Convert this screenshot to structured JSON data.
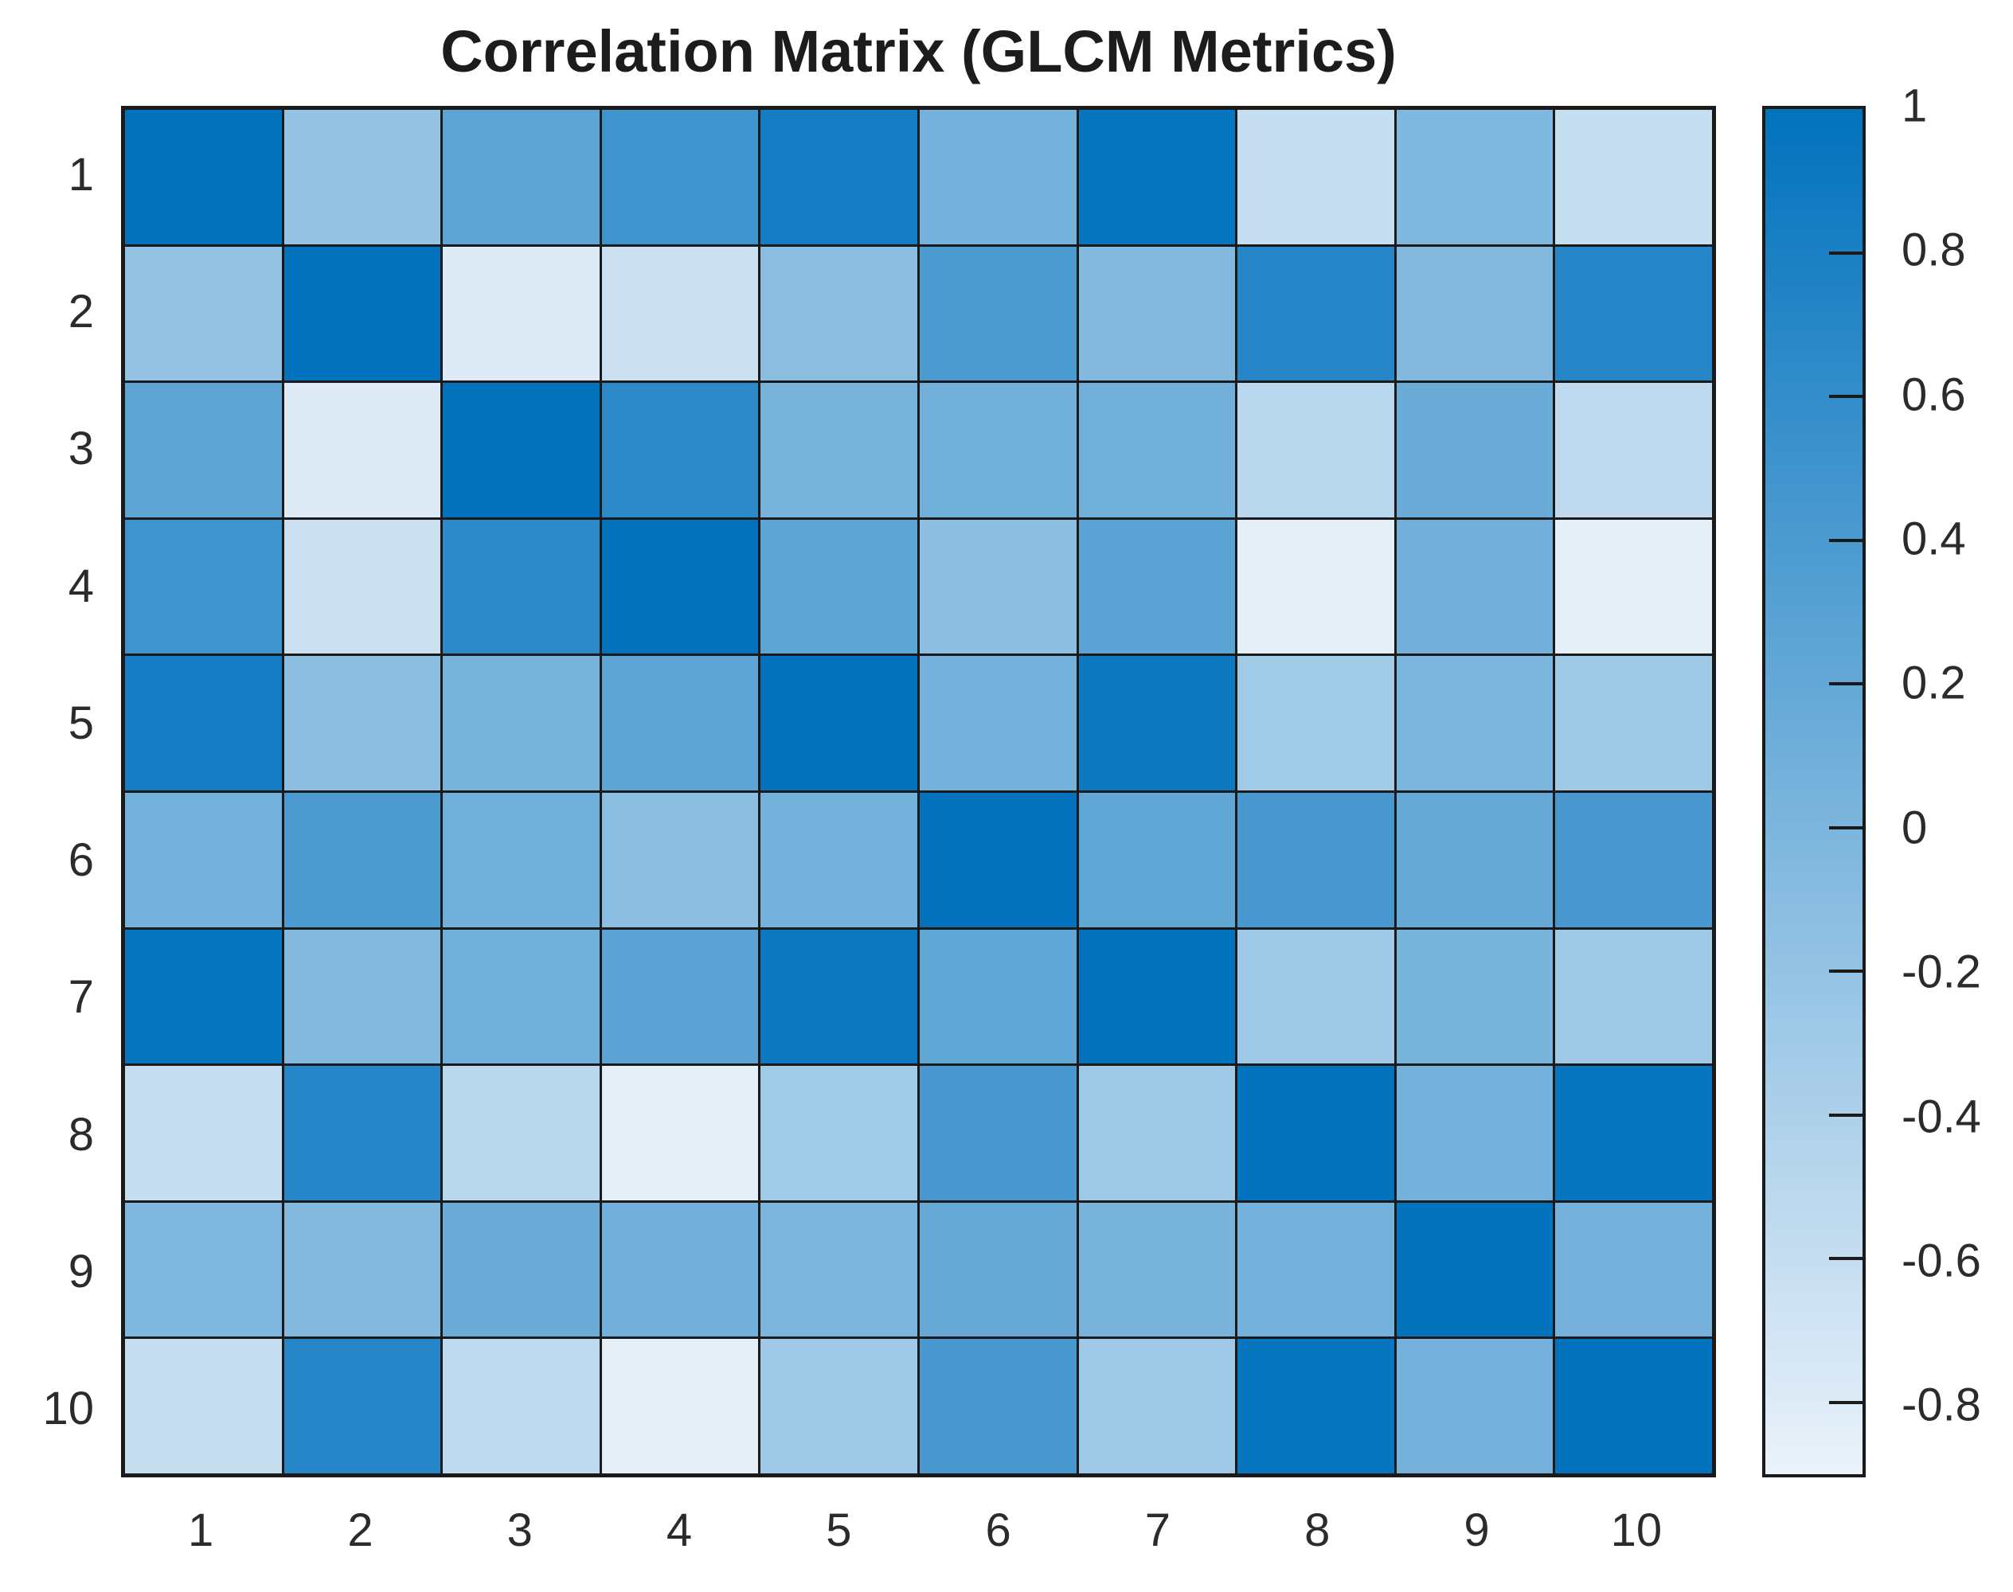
{
  "title": "Correlation Matrix (GLCM Metrics)",
  "axes": {
    "x_tick_labels": [
      "1",
      "2",
      "3",
      "4",
      "5",
      "6",
      "7",
      "8",
      "9",
      "10"
    ],
    "y_tick_labels": [
      "1",
      "2",
      "3",
      "4",
      "5",
      "6",
      "7",
      "8",
      "9",
      "10"
    ]
  },
  "colorbar": {
    "min": -0.9,
    "max": 1,
    "color_at_max": "#0272bd",
    "color_at_min": "#eaf2fa",
    "ticks": [
      {
        "label": "1",
        "value": 1,
        "edge_tick": true
      },
      {
        "label": "0.8",
        "value": 0.8
      },
      {
        "label": "0.6",
        "value": 0.6
      },
      {
        "label": "0.4",
        "value": 0.4
      },
      {
        "label": "0.2",
        "value": 0.2
      },
      {
        "label": "0",
        "value": 0
      },
      {
        "label": "-0.2",
        "value": -0.2
      },
      {
        "label": "-0.4",
        "value": -0.4
      },
      {
        "label": "-0.6",
        "value": -0.6
      },
      {
        "label": "-0.8",
        "value": -0.8
      }
    ]
  },
  "style_colors": {
    "grid_line": "#1a1a1a",
    "text": "#2b2b2b",
    "title_text": "#1c1c1c",
    "background": "#ffffff"
  },
  "chart_data": {
    "type": "heatmap",
    "title": "Correlation Matrix (GLCM Metrics)",
    "x": [
      1,
      2,
      3,
      4,
      5,
      6,
      7,
      8,
      9,
      10
    ],
    "y": [
      1,
      2,
      3,
      4,
      5,
      6,
      7,
      8,
      9,
      10
    ],
    "matrix": [
      [
        1,
        -0.2,
        0.25,
        0.5,
        0.85,
        0.07,
        0.95,
        -0.6,
        -0.03,
        -0.6
      ],
      [
        -0.2,
        1,
        -0.8,
        -0.65,
        -0.12,
        0.4,
        -0.06,
        0.7,
        -0.06,
        0.7
      ],
      [
        0.25,
        -0.8,
        1,
        0.65,
        0.03,
        0.1,
        0.1,
        -0.5,
        0.15,
        -0.55
      ],
      [
        0.5,
        -0.65,
        0.65,
        1,
        0.25,
        -0.13,
        0.27,
        -0.85,
        0.08,
        -0.85
      ],
      [
        0.85,
        -0.12,
        0.03,
        0.25,
        1,
        0.07,
        0.9,
        -0.3,
        0,
        -0.28
      ],
      [
        0.07,
        0.4,
        0.1,
        -0.13,
        0.07,
        1,
        0.22,
        0.43,
        0.18,
        0.43
      ],
      [
        0.95,
        -0.06,
        0.1,
        0.27,
        0.9,
        0.22,
        1,
        -0.28,
        0.03,
        -0.28
      ],
      [
        -0.6,
        0.7,
        -0.5,
        -0.85,
        -0.3,
        0.43,
        -0.28,
        1,
        0.07,
        0.95
      ],
      [
        -0.03,
        -0.06,
        0.15,
        0.08,
        0,
        0.18,
        0.03,
        0.07,
        1,
        0.06
      ],
      [
        -0.6,
        0.7,
        -0.55,
        -0.85,
        -0.28,
        0.43,
        -0.28,
        0.95,
        0.06,
        1
      ]
    ],
    "value_range_displayed": [
      -0.9,
      1
    ],
    "colormap": "light blue (low) to dark blue (high), linear",
    "legend_position": "right-colorbar",
    "grid": true
  }
}
